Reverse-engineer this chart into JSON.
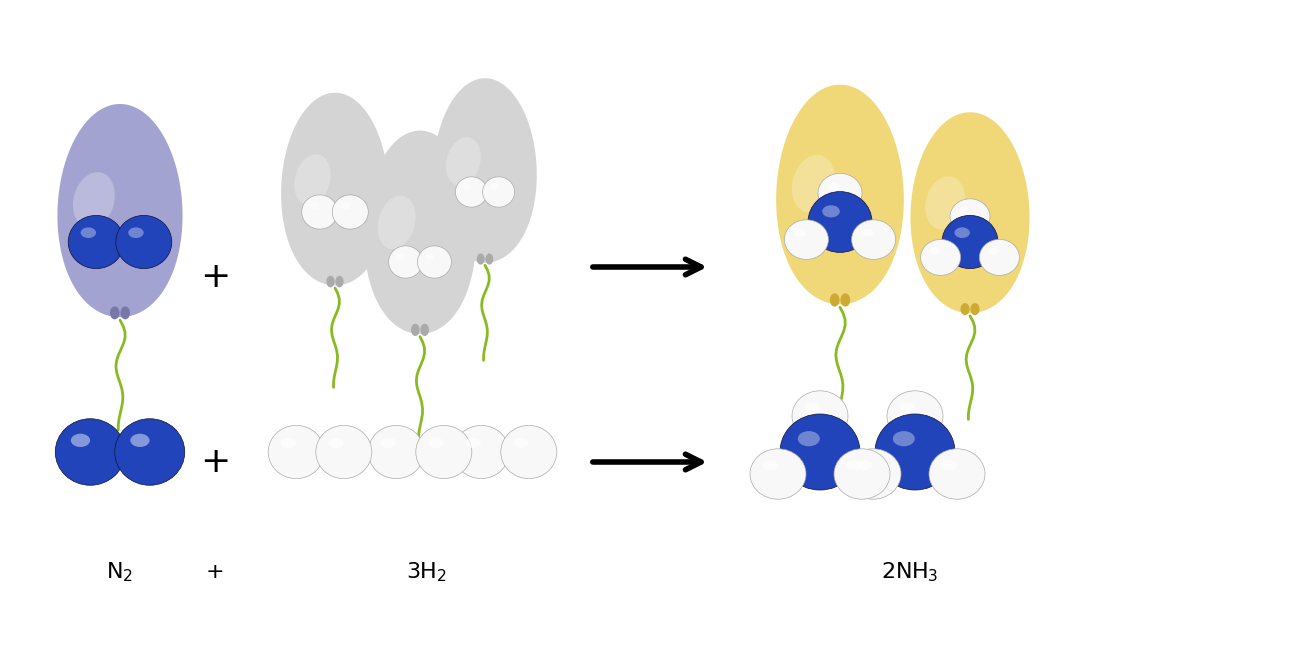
{
  "background_color": "#ffffff",
  "n2_balloon_color": "#9999cc",
  "h2_balloon_color": "#d4d4d4",
  "nh3_balloon_color": "#f0d878",
  "string_color": "#88bb22",
  "n2_knot_color": "#7777aa",
  "h2_knot_color": "#aaaaaa",
  "nh3_knot_color": "#ccaa33",
  "nitrogen_color": "#2244bb",
  "nitrogen_dark": "#111133",
  "hydrogen_color": "#f8f8f8",
  "hydrogen_edge": "#aaaaaa",
  "label_fontsize": 16,
  "plus_fontsize": 22
}
